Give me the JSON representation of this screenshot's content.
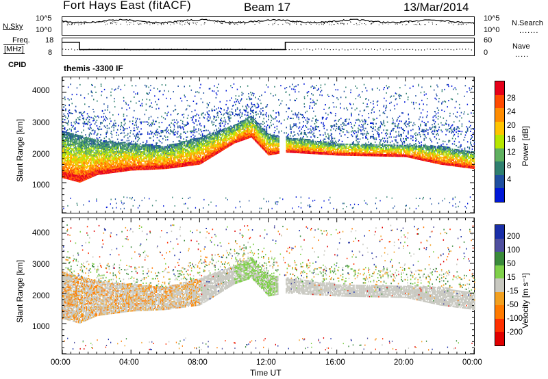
{
  "header": {
    "station": "Fort Hays East (fitACF)",
    "beam": "Beam 17",
    "date": "13/Mar/2014"
  },
  "top_panels": {
    "nsky_label": "N.Sky",
    "nsky_ticks": [
      "10^5",
      "10^0"
    ],
    "nsearch_label": "N.Search",
    "nsearch_ticks": [
      "10^5",
      "10^0"
    ],
    "freq_label_1": "Freq.",
    "freq_label_2": "[MHz]",
    "freq_ticks": [
      "18",
      "8"
    ],
    "nave_label": "Nave",
    "nave_ticks": [
      "60",
      "0"
    ],
    "cpid_label": "CPID",
    "cpid_text": "themis -3300 IF"
  },
  "axes": {
    "ylabel": "Slant Range [km]",
    "xlabel": "Time UT",
    "yticks": [
      "4000",
      "3000",
      "2000",
      "1000"
    ],
    "xticks": [
      "00:00",
      "04:00",
      "08:00",
      "12:00",
      "16:00",
      "20:00",
      "00:00"
    ]
  },
  "colorbars": {
    "power": {
      "label": "Power [dB]",
      "ticks": [
        "28",
        "24",
        "20",
        "16",
        "12",
        "8",
        "4"
      ],
      "colors": [
        "#e6001a",
        "#ff4a00",
        "#ff8c00",
        "#ffc400",
        "#b7e600",
        "#5fb05f",
        "#2f7f6f",
        "#1f4fa0",
        "#0018d8"
      ]
    },
    "velocity": {
      "label": "Velocity [m s⁻¹]",
      "ticks": [
        "200",
        "100",
        "50",
        "15",
        "-15",
        "-50",
        "-100",
        "-200"
      ],
      "colors": [
        "#1a2fa8",
        "#4f4f9f",
        "#3a8a3a",
        "#7fd04a",
        "#c8c8c0",
        "#f2a020",
        "#ff7a00",
        "#ff3000",
        "#e00000"
      ]
    }
  },
  "chart_data": [
    {
      "type": "line",
      "title": "Fort Hays East (fitACF)  Beam 17  13/Mar/2014",
      "panel": "Freq.",
      "ylabel": "Freq. [MHz]",
      "ylim": [
        8,
        18
      ],
      "x": [
        "00:00",
        "01:00",
        "13:00",
        "24:00"
      ],
      "series": [
        {
          "name": "Freq.",
          "values": [
            15.5,
            11.5,
            15.5,
            15.5
          ]
        }
      ]
    },
    {
      "type": "heatmap",
      "panel": "Power",
      "xlabel": "Time UT",
      "ylabel": "Slant Range [km]",
      "xlim_hours": [
        0,
        24
      ],
      "ylim": [
        0,
        4500
      ],
      "colorbar": "Power [dB]",
      "scatter_band_lower_edge_km": [
        [
          0,
          1150
        ],
        [
          1,
          1000
        ],
        [
          2,
          1250
        ],
        [
          4,
          1400
        ],
        [
          6,
          1450
        ],
        [
          8,
          1600
        ],
        [
          10,
          2300
        ],
        [
          11,
          2500
        ],
        [
          12,
          1900
        ],
        [
          13,
          2000
        ],
        [
          16,
          1900
        ],
        [
          20,
          1850
        ],
        [
          22,
          1600
        ],
        [
          24,
          1450
        ]
      ],
      "scatter_band_upper_edge_km": [
        [
          0,
          2700
        ],
        [
          2,
          2400
        ],
        [
          4,
          2300
        ],
        [
          6,
          2200
        ],
        [
          8,
          2500
        ],
        [
          10,
          2900
        ],
        [
          11,
          3200
        ],
        [
          12,
          2600
        ],
        [
          13,
          2500
        ],
        [
          16,
          2300
        ],
        [
          20,
          2250
        ],
        [
          22,
          2200
        ],
        [
          24,
          2000
        ]
      ]
    },
    {
      "type": "heatmap",
      "panel": "Velocity",
      "xlabel": "Time UT",
      "ylabel": "Slant Range [km]",
      "xlim_hours": [
        0,
        24
      ],
      "ylim": [
        0,
        4500
      ],
      "colorbar": "Velocity [m s⁻¹]"
    }
  ]
}
